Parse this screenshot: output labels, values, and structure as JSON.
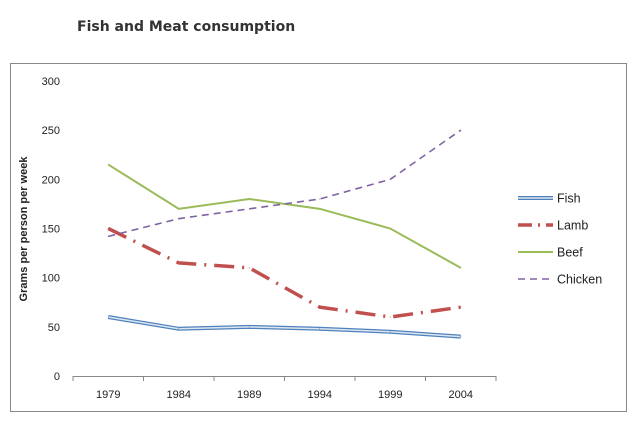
{
  "chart_data": {
    "type": "line",
    "title": "Fish and Meat consumption",
    "xlabel": "",
    "ylabel": "Grams per person per week",
    "categories": [
      "1979",
      "1984",
      "1989",
      "1994",
      "1999",
      "2004"
    ],
    "ylim": [
      0,
      300
    ],
    "yticks": [
      0,
      50,
      100,
      150,
      200,
      250,
      300
    ],
    "grid": false,
    "legend_position": "right",
    "series": [
      {
        "name": "Fish",
        "color": "#4f81bd",
        "style": "double",
        "values": [
          60,
          48,
          50,
          48,
          45,
          40
        ]
      },
      {
        "name": "Lamb",
        "color": "#c0504d",
        "style": "dash-dot",
        "values": [
          150,
          115,
          110,
          70,
          60,
          70
        ]
      },
      {
        "name": "Beef",
        "color": "#9bbb59",
        "style": "solid",
        "values": [
          215,
          170,
          180,
          170,
          150,
          110
        ]
      },
      {
        "name": "Chicken",
        "color": "#8064a2",
        "style": "dashed",
        "values": [
          142,
          160,
          170,
          180,
          200,
          250
        ]
      }
    ]
  }
}
